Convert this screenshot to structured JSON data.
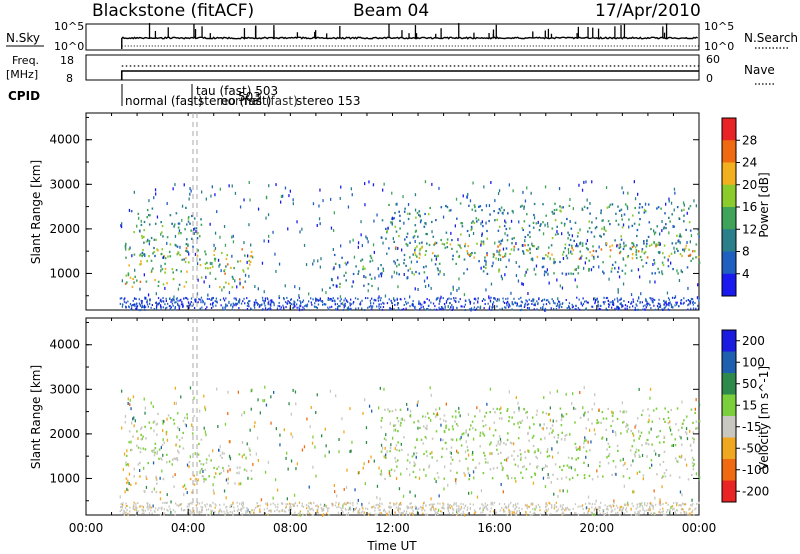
{
  "header": {
    "station": "Blackstone (fitACF)",
    "beam": "Beam 04",
    "date": "17/Apr/2010"
  },
  "panels": {
    "nsky": {
      "label": "N.Sky",
      "tick_top": "10^5",
      "tick_bottom": "10^0",
      "right_label": "N.Search",
      "right_tick_top": "10^5",
      "right_tick_bottom": "10^0"
    },
    "freq": {
      "label_line1": "Freq.",
      "label_line2": "[MHz]",
      "tick_top": "18",
      "tick_bottom": "8",
      "right_label": "Nave",
      "right_tick_top": "60",
      "right_tick_bottom": "0"
    },
    "cpid": {
      "label": "CPID",
      "text1": "tau (fast) 503",
      "text2": "normal (fast)",
      "text3": "stereo (fast)",
      "text4": "503",
      "text5": "normal (fast)",
      "text6": "stereo 153"
    }
  },
  "chart_data": [
    {
      "type": "heatmap",
      "title": "",
      "ylabel": "Slant Range [km]",
      "ylim": [
        180,
        4600
      ],
      "yticks": [
        "1000",
        "2000",
        "3000",
        "4000"
      ],
      "colorbar": {
        "label": "Power [dB]",
        "ticks": [
          "4",
          "8",
          "12",
          "16",
          "20",
          "24",
          "28"
        ],
        "range": [
          0,
          32
        ],
        "colors": [
          "#1a1af0",
          "#1f5fbf",
          "#2a7f8a",
          "#3fa35a",
          "#8ccb2c",
          "#f2b01e",
          "#f06a12",
          "#e82424"
        ]
      },
      "bands": [
        {
          "t": [
            1.5,
            4.5
          ],
          "r": [
            1300,
            2500
          ],
          "mean": 12
        },
        {
          "t": [
            1.5,
            6.5
          ],
          "r": [
            700,
            1600
          ],
          "mean": 18
        },
        {
          "t": [
            9.5,
            11.3
          ],
          "r": [
            700,
            1500
          ],
          "mean": 10
        },
        {
          "t": [
            11.5,
            24
          ],
          "r": [
            1000,
            2600
          ],
          "mean": 11
        },
        {
          "t": [
            12,
            24
          ],
          "r": [
            1350,
            1700
          ],
          "mean": 20
        }
      ]
    },
    {
      "type": "heatmap",
      "title": "",
      "xlabel": "Time UT",
      "ylabel": "Slant Range [km]",
      "ylim": [
        180,
        4600
      ],
      "yticks": [
        "1000",
        "2000",
        "3000",
        "4000"
      ],
      "xticks": [
        "00:00",
        "04:00",
        "08:00",
        "12:00",
        "16:00",
        "20:00",
        "00:00"
      ],
      "colorbar": {
        "label": "Velocity [m s^-1]",
        "ticks": [
          "200",
          "100",
          "50",
          "15",
          "-15",
          "-50",
          "-100",
          "-200"
        ],
        "range": [
          -250,
          250
        ],
        "colors": [
          "#1a1ae0",
          "#1f5fb0",
          "#2e8a4a",
          "#7ccf3c",
          "#c8c8c0",
          "#f0a820",
          "#f06a12",
          "#e82424"
        ]
      },
      "bands": [
        {
          "t": [
            1.5,
            4.5
          ],
          "r": [
            1300,
            2500
          ],
          "mean": 0
        },
        {
          "t": [
            1.5,
            4.3
          ],
          "r": [
            700,
            1100
          ],
          "mean": -70
        },
        {
          "t": [
            4.3,
            6.5
          ],
          "r": [
            900,
            1600
          ],
          "mean": 5
        },
        {
          "t": [
            11.5,
            24
          ],
          "r": [
            1000,
            2600
          ],
          "mean": 0
        }
      ]
    }
  ],
  "axes": {
    "xlabel": "Time UT"
  }
}
